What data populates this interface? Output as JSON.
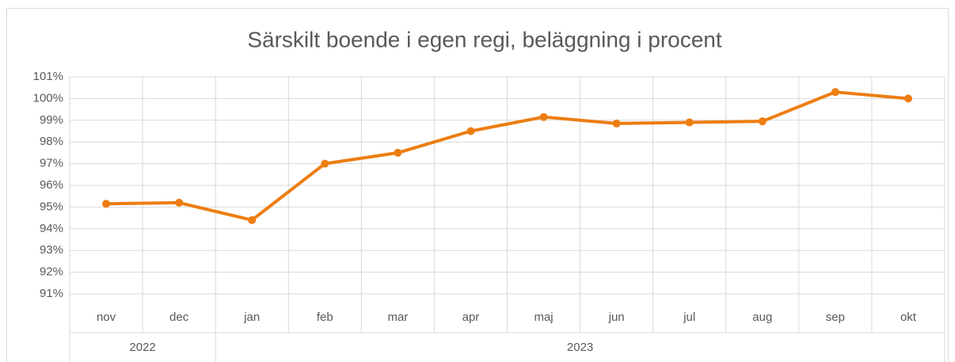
{
  "chart_data": {
    "type": "line",
    "title": "Särskilt boende i egen regi, beläggning i procent",
    "categories": [
      "nov",
      "dec",
      "jan",
      "feb",
      "mar",
      "apr",
      "maj",
      "jun",
      "jul",
      "aug",
      "sep",
      "okt"
    ],
    "x_groups": [
      {
        "label": "2022",
        "span": 2
      },
      {
        "label": "2023",
        "span": 10
      }
    ],
    "series": [
      {
        "name": "Beläggning",
        "color": "#ed7d11",
        "values": [
          95.15,
          95.2,
          94.4,
          97.0,
          97.5,
          98.5,
          99.15,
          98.85,
          98.9,
          98.95,
          100.3,
          100.0
        ]
      }
    ],
    "ylim": [
      91,
      101
    ],
    "yticks": [
      {
        "value": 91,
        "label": "91%"
      },
      {
        "value": 92,
        "label": "92%"
      },
      {
        "value": 93,
        "label": "93%"
      },
      {
        "value": 94,
        "label": "94%"
      },
      {
        "value": 95,
        "label": "95%"
      },
      {
        "value": 96,
        "label": "96%"
      },
      {
        "value": 97,
        "label": "97%"
      },
      {
        "value": 98,
        "label": "98%"
      },
      {
        "value": 99,
        "label": "99%"
      },
      {
        "value": 100,
        "label": "100%"
      },
      {
        "value": 101,
        "label": "101%"
      }
    ],
    "grid": true
  }
}
